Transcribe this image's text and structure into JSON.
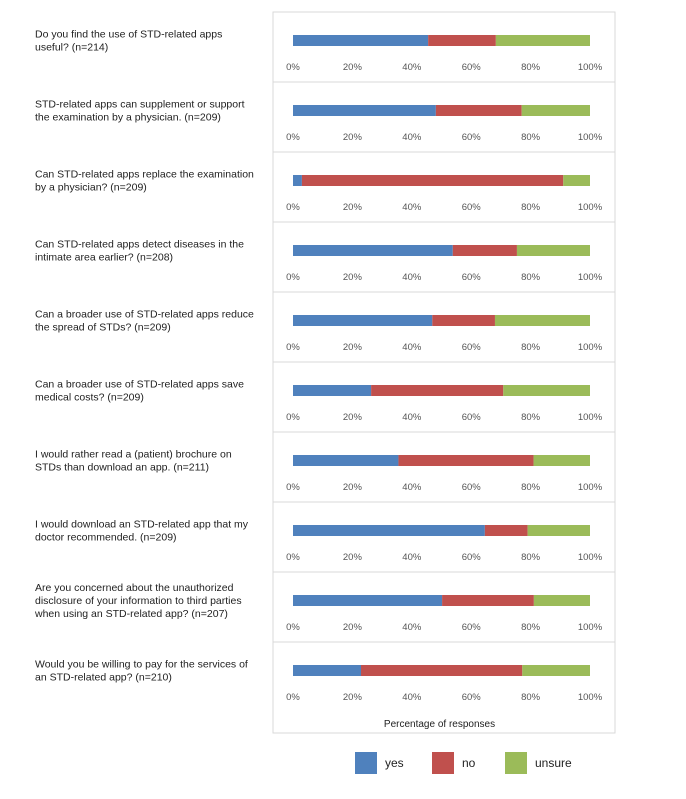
{
  "chart_data": {
    "type": "bar",
    "orientation": "horizontal",
    "stacked": true,
    "xlabel": "Percentage of responses",
    "xlim": [
      0,
      100
    ],
    "ticks": [
      "0%",
      "20%",
      "40%",
      "60%",
      "80%",
      "100%"
    ],
    "series_names": [
      "yes",
      "no",
      "unsure"
    ],
    "colors": {
      "yes": "#4f81bd",
      "no": "#c0504d",
      "unsure": "#9bbb59"
    },
    "questions": [
      {
        "lines": [
          "Do you find the use of STD-related apps",
          "useful? (n=214)"
        ],
        "yes": 45.5,
        "no": 22.8,
        "unsure": 31.7
      },
      {
        "lines": [
          "STD-related apps can supplement or support",
          "the examination by a physician. (n=209)"
        ],
        "yes": 48.1,
        "no": 28.9,
        "unsure": 23.0
      },
      {
        "lines": [
          "Can STD-related apps replace the examination",
          "by a physician? (n=209)"
        ],
        "yes": 3.0,
        "no": 88.0,
        "unsure": 9.0
      },
      {
        "lines": [
          "Can STD-related apps detect diseases in the",
          "intimate area earlier? (n=208)"
        ],
        "yes": 53.8,
        "no": 21.6,
        "unsure": 24.6
      },
      {
        "lines": [
          "Can a broader use of STD-related apps reduce",
          "the spread of STDs? (n=209)"
        ],
        "yes": 46.9,
        "no": 21.1,
        "unsure": 32.0
      },
      {
        "lines": [
          "Can a broader use of STD-related apps save",
          "medical costs? (n=209)"
        ],
        "yes": 26.3,
        "no": 44.5,
        "unsure": 29.2
      },
      {
        "lines": [
          "I would rather read a (patient) brochure on",
          "STDs than download an app. (n=211)"
        ],
        "yes": 35.5,
        "no": 45.5,
        "unsure": 19.0
      },
      {
        "lines": [
          "I would download an STD-related app that my",
          "doctor recommended. (n=209)"
        ],
        "yes": 64.6,
        "no": 14.4,
        "unsure": 21.0
      },
      {
        "lines": [
          "Are you concerned about the unauthorized",
          "disclosure of your information to third parties",
          "when using an STD-related app? (n=207)"
        ],
        "yes": 50.2,
        "no": 30.9,
        "unsure": 18.9
      },
      {
        "lines": [
          "Would you be willing to pay for the services of",
          "an STD-related app? (n=210)"
        ],
        "yes": 22.9,
        "no": 54.3,
        "unsure": 22.8
      }
    ]
  }
}
